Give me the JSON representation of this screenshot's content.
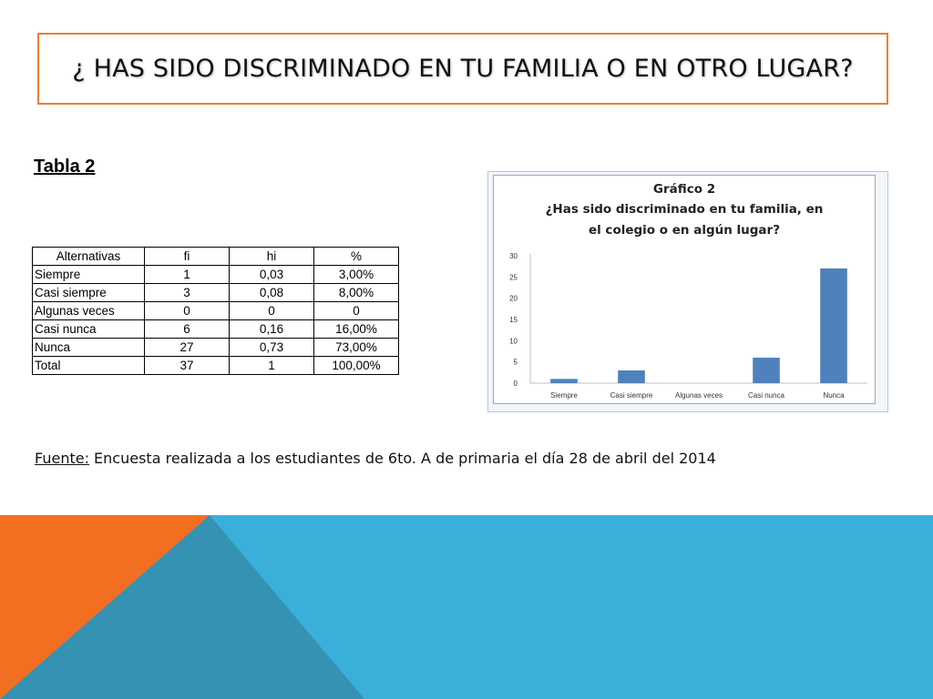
{
  "slide": {
    "title": "¿ HAS SIDO DISCRIMINADO EN TU FAMILIA O EN OTRO LUGAR?",
    "table_title": "Tabla 2",
    "source_label": "Fuente:",
    "source_text": " Encuesta realizada a los estudiantes de 6to. A de primaria  el día 28 de abril del 2014"
  },
  "table": {
    "headers": [
      "Alternativas",
      "fi",
      "hi",
      "%"
    ],
    "rows": [
      [
        "Siempre",
        "1",
        "0,03",
        "3,00%"
      ],
      [
        "Casi siempre",
        "3",
        "0,08",
        "8,00%"
      ],
      [
        "Algunas veces",
        "0",
        "0",
        "0"
      ],
      [
        "Casi nunca",
        "6",
        "0,16",
        "16,00%"
      ],
      [
        "Nunca",
        "27",
        "0,73",
        "73,00%"
      ],
      [
        "Total",
        "37",
        "1",
        "100,00%"
      ]
    ]
  },
  "chart_data": {
    "type": "bar",
    "title_lines": [
      "Gráfico 2",
      "¿Has sido discriminado en tu familia, en",
      "el colegio o en algún lugar?"
    ],
    "categories": [
      "Siempre",
      "Casi siempre",
      "Algunas veces",
      "Casi nunca",
      "Nunca"
    ],
    "values": [
      1,
      3,
      0,
      6,
      27
    ],
    "ylim": [
      0,
      30
    ],
    "yticks": [
      0,
      5,
      10,
      15,
      20,
      25,
      30
    ],
    "grid": false,
    "legend": "none",
    "bar_color": "#4f81bd"
  },
  "colors": {
    "title_border": "#ed7d31",
    "deco_orange": "#f26f21",
    "deco_blue": "#3aafda",
    "deco_teal": "#3592b3"
  }
}
